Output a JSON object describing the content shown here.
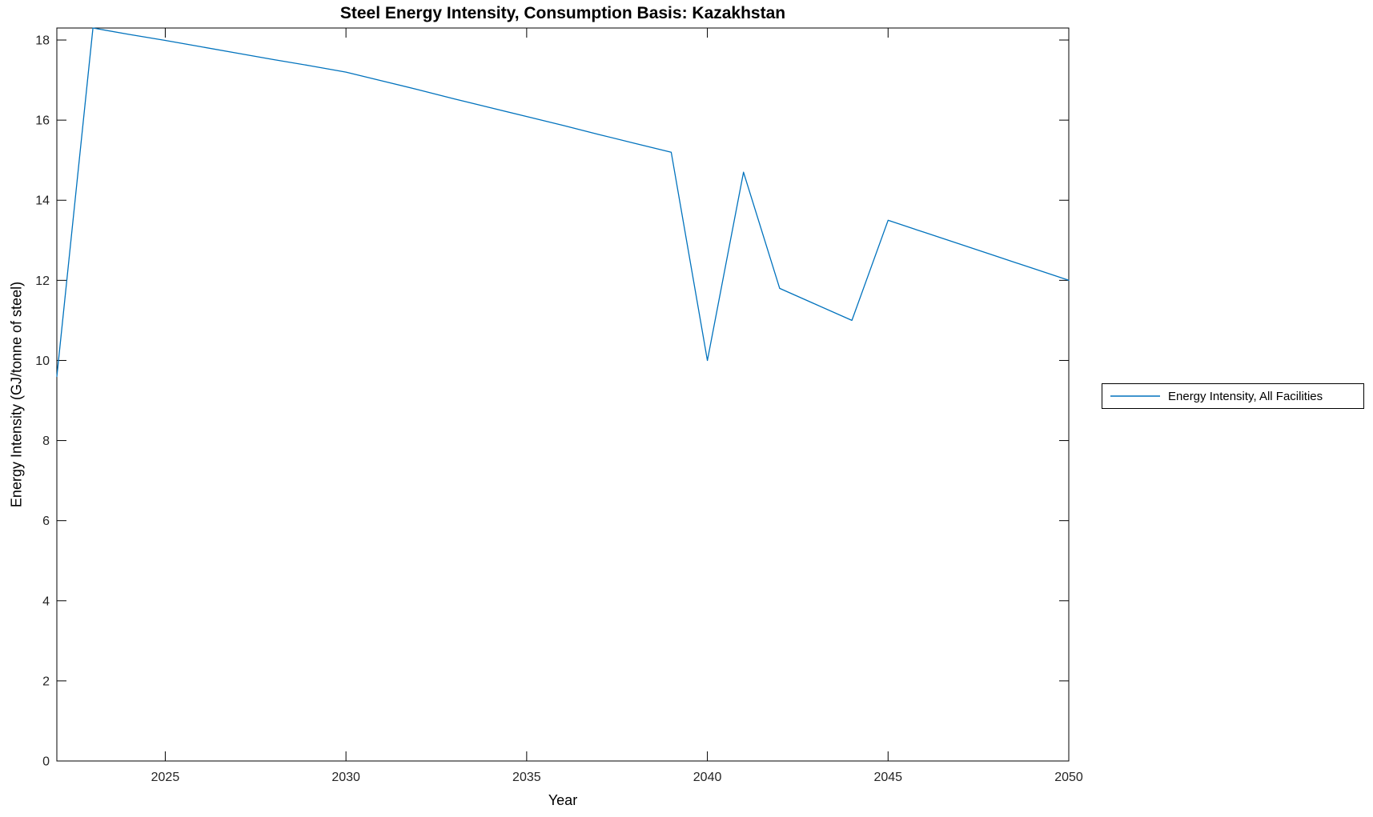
{
  "window": {
    "background": "#ffffff"
  },
  "chart_data": {
    "type": "line",
    "title": "Steel Energy Intensity, Consumption Basis: Kazakhstan",
    "xlabel": "Year",
    "ylabel": "Energy Intensity (GJ/tonne of steel)",
    "xlim": [
      2022,
      2050
    ],
    "ylim": [
      0,
      18.3
    ],
    "xticks": [
      2025,
      2030,
      2035,
      2040,
      2045,
      2050
    ],
    "yticks": [
      0,
      2,
      4,
      6,
      8,
      10,
      12,
      14,
      16,
      18
    ],
    "grid": false,
    "box": true,
    "tick_direction": "in",
    "legend": {
      "position": "right-outside",
      "entries": [
        {
          "label": "Energy Intensity, All Facilities",
          "color": "#0072BD"
        }
      ]
    },
    "series": [
      {
        "name": "Energy Intensity, All Facilities",
        "color": "#0072BD",
        "line_width": 1.3,
        "x": [
          2022,
          2023,
          2024,
          2025,
          2026,
          2027,
          2028,
          2029,
          2030,
          2031,
          2032,
          2033,
          2034,
          2035,
          2036,
          2037,
          2038,
          2039,
          2040,
          2041,
          2042,
          2043,
          2044,
          2045,
          2046,
          2047,
          2048,
          2049,
          2050
        ],
        "y": [
          9.6,
          18.3,
          18.14,
          17.99,
          17.83,
          17.67,
          17.51,
          17.36,
          17.2,
          16.98,
          16.76,
          16.53,
          16.31,
          16.09,
          15.87,
          15.64,
          15.42,
          15.2,
          10.0,
          14.7,
          11.8,
          11.4,
          11.0,
          13.5,
          13.2,
          12.9,
          12.6,
          12.3,
          12.0
        ]
      }
    ]
  },
  "colors": {
    "line": "#0072BD",
    "axis": "#000000",
    "tick_label": "#242424",
    "text": "#000000",
    "background": "#ffffff"
  }
}
